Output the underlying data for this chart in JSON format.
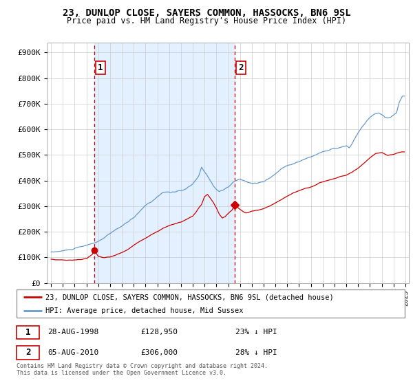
{
  "title": "23, DUNLOP CLOSE, SAYERS COMMON, HASSOCKS, BN6 9SL",
  "subtitle": "Price paid vs. HM Land Registry's House Price Index (HPI)",
  "title_fontsize": 10,
  "subtitle_fontsize": 8.5,
  "ylabel_ticks": [
    "£0",
    "£100K",
    "£200K",
    "£300K",
    "£400K",
    "£500K",
    "£600K",
    "£700K",
    "£800K",
    "£900K"
  ],
  "ytick_values": [
    0,
    100000,
    200000,
    300000,
    400000,
    500000,
    600000,
    700000,
    800000,
    900000
  ],
  "ylim": [
    0,
    940000
  ],
  "xlim_start": 1994.7,
  "xlim_end": 2025.3,
  "sale1_x": 1998.67,
  "sale1_y": 128950,
  "sale1_label": "1",
  "sale1_date": "28-AUG-1998",
  "sale1_price": "£128,950",
  "sale1_hpi": "23% ↓ HPI",
  "sale2_x": 2010.58,
  "sale2_y": 306000,
  "sale2_label": "2",
  "sale2_date": "05-AUG-2010",
  "sale2_price": "£306,000",
  "sale2_hpi": "28% ↓ HPI",
  "red_line_color": "#cc0000",
  "blue_line_color": "#6699cc",
  "vline_color": "#cc0000",
  "grid_color": "#cccccc",
  "shade_color": "#ddeeff",
  "background_color": "#ffffff",
  "legend_label_red": "23, DUNLOP CLOSE, SAYERS COMMON, HASSOCKS, BN6 9SL (detached house)",
  "legend_label_blue": "HPI: Average price, detached house, Mid Sussex",
  "footer": "Contains HM Land Registry data © Crown copyright and database right 2024.\nThis data is licensed under the Open Government Licence v3.0."
}
